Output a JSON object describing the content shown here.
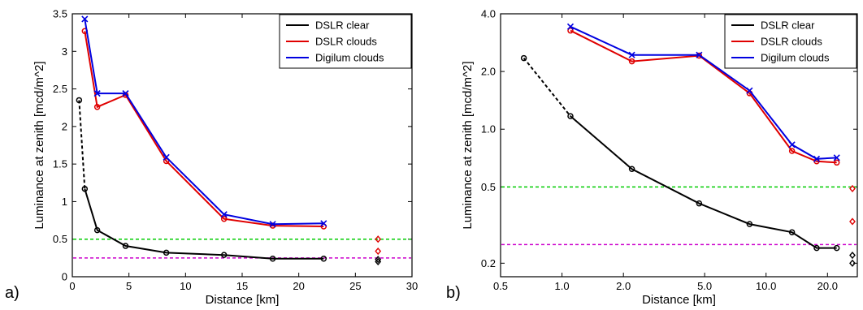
{
  "chart_data": [
    {
      "type": "line",
      "panel_label": "a)",
      "xlabel": "Distance [km]",
      "ylabel": "Luminance at zenith [mcd/m^2]",
      "xlim": [
        0,
        30
      ],
      "ylim": [
        0,
        3.5
      ],
      "xscale": "linear",
      "yscale": "linear",
      "xticks": [
        0,
        5,
        10,
        15,
        20,
        25,
        30
      ],
      "xtick_labels": [
        "0",
        "5",
        "10",
        "15",
        "20",
        "25",
        "30"
      ],
      "yticks": [
        0,
        0.5,
        1,
        1.5,
        2,
        2.5,
        3,
        3.5
      ],
      "ytick_labels": [
        "0",
        "0.5",
        "1",
        "1.5",
        "2",
        "2.5",
        "3",
        "3.5"
      ],
      "legend_position": "top-right",
      "grid": false,
      "series": [
        {
          "name": "DSLR clear",
          "color": "#000000",
          "marker": "circle",
          "x": [
            0.6,
            1.1,
            2.2,
            4.7,
            8.3,
            13.4,
            17.7,
            22.2
          ],
          "y": [
            2.35,
            1.17,
            0.62,
            0.41,
            0.32,
            0.29,
            0.24,
            0.24
          ],
          "dashed_first_segment": true
        },
        {
          "name": "DSLR clouds",
          "color": "#e00000",
          "marker": "circle",
          "x": [
            1.1,
            2.2,
            4.7,
            8.3,
            13.4,
            17.7,
            22.2
          ],
          "y": [
            3.27,
            2.26,
            2.42,
            1.54,
            0.77,
            0.68,
            0.67
          ]
        },
        {
          "name": "Digilum clouds",
          "color": "#0000e0",
          "marker": "x",
          "x": [
            1.1,
            2.2,
            4.7,
            8.3,
            13.4,
            17.7,
            22.2
          ],
          "y": [
            3.43,
            2.44,
            2.44,
            1.59,
            0.83,
            0.7,
            0.71
          ]
        }
      ],
      "reference_lines": [
        {
          "y": 0.5,
          "color": "#00cc00",
          "style": "dashed"
        },
        {
          "y": 0.25,
          "color": "#cc00cc",
          "style": "dashed"
        }
      ],
      "extra_points": [
        {
          "x": 27,
          "y": 0.5,
          "color": "#e00000",
          "marker": "diamond"
        },
        {
          "x": 27,
          "y": 0.34,
          "color": "#e00000",
          "marker": "diamond"
        },
        {
          "x": 27,
          "y": 0.23,
          "color": "#000000",
          "marker": "diamond"
        },
        {
          "x": 27,
          "y": 0.2,
          "color": "#000000",
          "marker": "diamond"
        }
      ]
    },
    {
      "type": "line",
      "panel_label": "b)",
      "xlabel": "Distance [km]",
      "ylabel": "Luminance at zenith [mcd/m^2]",
      "xlim": [
        0.5,
        28
      ],
      "ylim": [
        0.17,
        4.0
      ],
      "xscale": "log",
      "yscale": "log",
      "xticks": [
        0.5,
        1,
        2,
        5,
        10,
        20
      ],
      "xtick_labels": [
        "0.5",
        "1.0",
        "2.0",
        "5.0",
        "10.0",
        "20.0"
      ],
      "yticks": [
        0.2,
        0.5,
        1,
        2,
        4
      ],
      "ytick_labels": [
        "0.2",
        "0.5",
        "1.0",
        "2.0",
        "4.0"
      ],
      "legend_position": "top-right",
      "grid": false,
      "series": [
        {
          "name": "DSLR clear",
          "color": "#000000",
          "marker": "circle",
          "x": [
            0.65,
            1.1,
            2.2,
            4.7,
            8.3,
            13.4,
            17.7,
            22.2
          ],
          "y": [
            2.35,
            1.17,
            0.62,
            0.41,
            0.32,
            0.29,
            0.24,
            0.24
          ],
          "dashed_first_segment": true
        },
        {
          "name": "DSLR clouds",
          "color": "#e00000",
          "marker": "circle",
          "x": [
            1.1,
            2.2,
            4.7,
            8.3,
            13.4,
            17.7,
            22.2
          ],
          "y": [
            3.27,
            2.26,
            2.42,
            1.54,
            0.77,
            0.68,
            0.67
          ]
        },
        {
          "name": "Digilum clouds",
          "color": "#0000e0",
          "marker": "x",
          "x": [
            1.1,
            2.2,
            4.7,
            8.3,
            13.4,
            17.7,
            22.2
          ],
          "y": [
            3.43,
            2.44,
            2.44,
            1.59,
            0.83,
            0.7,
            0.71
          ]
        }
      ],
      "reference_lines": [
        {
          "y": 0.5,
          "color": "#00cc00",
          "style": "dashed"
        },
        {
          "y": 0.25,
          "color": "#cc00cc",
          "style": "dashed"
        }
      ],
      "extra_points": [
        {
          "x": 26.5,
          "y": 0.49,
          "color": "#e00000",
          "marker": "diamond"
        },
        {
          "x": 26.5,
          "y": 0.33,
          "color": "#e00000",
          "marker": "diamond"
        },
        {
          "x": 26.5,
          "y": 0.22,
          "color": "#000000",
          "marker": "diamond"
        },
        {
          "x": 26.5,
          "y": 0.2,
          "color": "#000000",
          "marker": "diamond"
        }
      ]
    }
  ]
}
